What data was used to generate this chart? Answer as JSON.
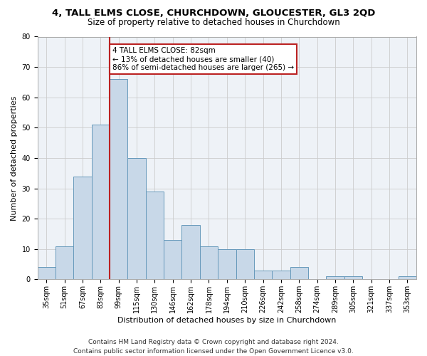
{
  "title": "4, TALL ELMS CLOSE, CHURCHDOWN, GLOUCESTER, GL3 2QD",
  "subtitle": "Size of property relative to detached houses in Churchdown",
  "xlabel": "Distribution of detached houses by size in Churchdown",
  "ylabel": "Number of detached properties",
  "bar_color": "#c8d8e8",
  "bar_edge_color": "#6699bb",
  "categories": [
    "35sqm",
    "51sqm",
    "67sqm",
    "83sqm",
    "99sqm",
    "115sqm",
    "130sqm",
    "146sqm",
    "162sqm",
    "178sqm",
    "194sqm",
    "210sqm",
    "226sqm",
    "242sqm",
    "258sqm",
    "274sqm",
    "289sqm",
    "305sqm",
    "321sqm",
    "337sqm",
    "353sqm"
  ],
  "values": [
    4,
    11,
    34,
    51,
    66,
    40,
    29,
    13,
    18,
    11,
    10,
    10,
    3,
    3,
    4,
    0,
    1,
    1,
    0,
    0,
    1
  ],
  "vline_x": 3.5,
  "vline_color": "#bb2222",
  "annotation_line1": "4 TALL ELMS CLOSE: 82sqm",
  "annotation_line2": "← 13% of detached houses are smaller (40)",
  "annotation_line3": "86% of semi-detached houses are larger (265) →",
  "annotation_box_color": "#ffffff",
  "annotation_box_edge_color": "#bb2222",
  "ylim": [
    0,
    80
  ],
  "yticks": [
    0,
    10,
    20,
    30,
    40,
    50,
    60,
    70,
    80
  ],
  "grid_color": "#cccccc",
  "bg_color": "#eef2f7",
  "footnote": "Contains HM Land Registry data © Crown copyright and database right 2024.\nContains public sector information licensed under the Open Government Licence v3.0.",
  "title_fontsize": 9.5,
  "subtitle_fontsize": 8.5,
  "xlabel_fontsize": 8,
  "ylabel_fontsize": 8,
  "tick_fontsize": 7,
  "annotation_fontsize": 7.5,
  "footnote_fontsize": 6.5
}
